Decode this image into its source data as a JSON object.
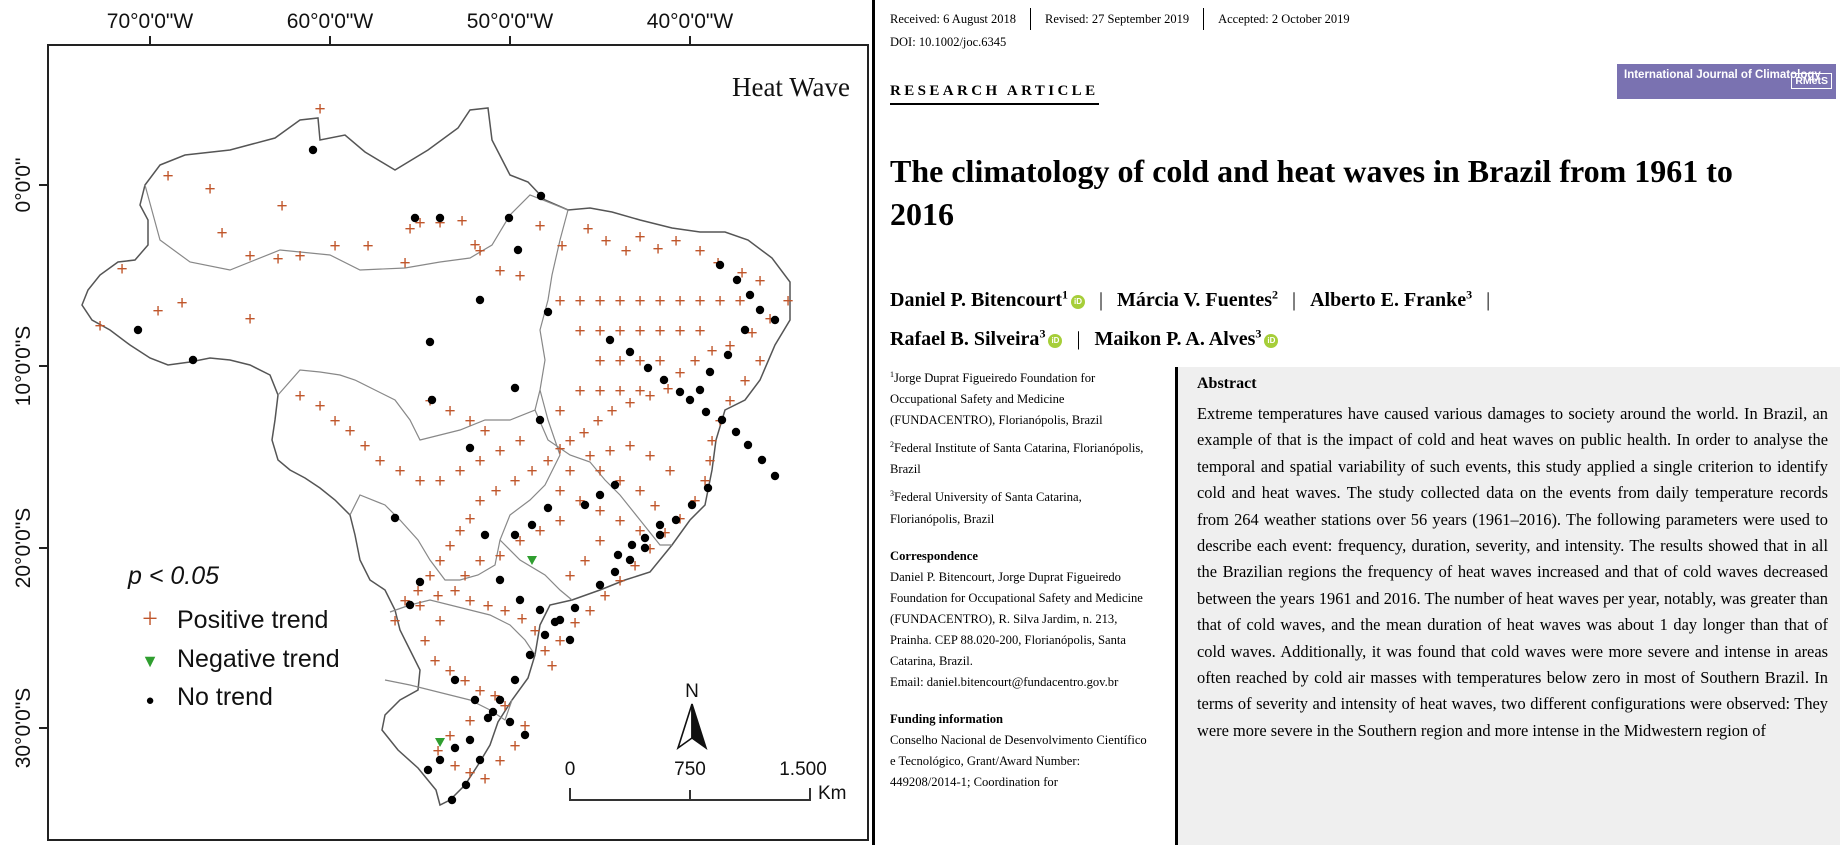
{
  "figure": {
    "map_title": "Heat Wave",
    "longitude_labels": [
      "70°0'0\"W",
      "60°0'0\"W",
      "50°0'0\"W",
      "40°0'0\"W"
    ],
    "latitude_labels": [
      "0°0'0\"",
      "10°0'0\"S",
      "20°0'0\"S",
      "30°0'0\"S"
    ],
    "significance": "p < 0.05",
    "legend": [
      {
        "symbol": "+",
        "label": "Positive trend",
        "color": "#c0562b"
      },
      {
        "symbol": "▼",
        "label": "Negative trend",
        "color": "#2f9e2f"
      },
      {
        "symbol": "●",
        "label": "No trend",
        "color": "#000000"
      }
    ],
    "north_label": "N",
    "scale_labels": [
      "0",
      "750",
      "1.500"
    ],
    "scale_unit": "Km"
  },
  "article": {
    "history": [
      "Received: 6 August 2018",
      "Revised: 27 September 2019",
      "Accepted: 2 October 2019"
    ],
    "doi": "DOI: 10.1002/joc.6345",
    "article_type": "RESEARCH ARTICLE",
    "journal_name": "International Journal of Climatology",
    "publisher_badge": "RMetS",
    "title": "The climatology of cold and heat waves in Brazil from 1961 to 2016",
    "authors": [
      {
        "name": "Daniel P. Bitencourt",
        "sup": "1",
        "orcid": true
      },
      {
        "name": "Márcia V. Fuentes",
        "sup": "2",
        "orcid": false
      },
      {
        "name": "Alberto E. Franke",
        "sup": "3",
        "orcid": false
      },
      {
        "name": "Rafael B. Silveira",
        "sup": "3",
        "orcid": true
      },
      {
        "name": "Maikon P. A. Alves",
        "sup": "3",
        "orcid": true
      }
    ],
    "affiliations": [
      {
        "sup": "1",
        "text": "Jorge Duprat Figueiredo Foundation for Occupational Safety and Medicine (FUNDACENTRO), Florianópolis, Brazil"
      },
      {
        "sup": "2",
        "text": "Federal Institute of Santa Catarina, Florianópolis, Brazil"
      },
      {
        "sup": "3",
        "text": "Federal University of Santa Catarina, Florianópolis, Brazil"
      }
    ],
    "correspondence_head": "Correspondence",
    "correspondence_text": "Daniel P. Bitencourt, Jorge Duprat Figueiredo Foundation for Occupational Safety and Medicine (FUNDACENTRO), R. Silva Jardim, n. 213, Prainha. CEP 88.020-200, Florianópolis, Santa Catarina, Brazil.",
    "correspondence_email": "Email: daniel.bitencourt@fundacentro.gov.br",
    "funding_head": "Funding information",
    "funding_text": "Conselho Nacional de Desenvolvimento Científico e Tecnológico, Grant/Award Number: 449208/2014-1; Coordination for",
    "abstract_title": "Abstract",
    "abstract_text": "Extreme temperatures have caused various damages to society around the world. In Brazil, an example of that is the impact of cold and heat waves on public health. In order to analyse the temporal and spatial variability of such events, this study applied a single criterion to identify cold and heat waves. The study collected data on the events from daily temperature records from 264 weather stations over 56 years (1961–2016). The following parameters were used to describe each event: frequency, duration, severity, and intensity. The results showed that in all the Brazilian regions the frequency of heat waves increased and that of cold waves decreased between the years 1961 and 2016. The number of heat waves per year, notably, was greater than that of cold waves, and the mean duration of heat waves was about 1 day longer than that of cold waves. Additionally, it was found that cold waves were more severe and intense in areas often reached by cold air masses with temperatures below zero in most of Southern Brazil. In terms of severity and intensity of heat waves, two different configurations were observed: They were more severe in the Southern region and more intense in the Midwestern region of"
  }
}
